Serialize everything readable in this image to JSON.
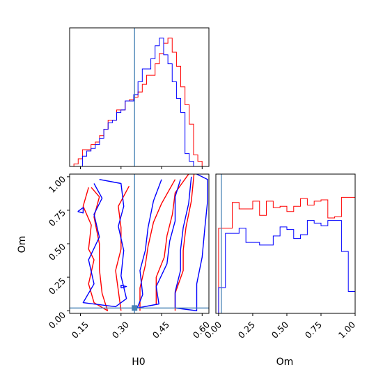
{
  "chart_data": {
    "type": "corner",
    "parameters": [
      "H0",
      "Om"
    ],
    "truth": {
      "H0": 0.35,
      "Om": 0.02
    },
    "truth_color": "#4682b4",
    "series": [
      {
        "color": "#ff0000"
      },
      {
        "color": "#0000ff"
      }
    ],
    "panels": [
      {
        "id": "hist-H0",
        "kind": "histogram",
        "param": "H0",
        "xlim": [
          0.11,
          0.625
        ],
        "ylim": [
          0,
          1.08
        ],
        "xticks": [
          0.15,
          0.3,
          0.45,
          0.6
        ],
        "bin_edges": [
          0.11,
          0.1258,
          0.1416,
          0.1574,
          0.1732,
          0.189,
          0.2048,
          0.2206,
          0.2364,
          0.2522,
          0.268,
          0.2838,
          0.2996,
          0.3154,
          0.3312,
          0.347,
          0.3628,
          0.3786,
          0.3944,
          0.4102,
          0.426,
          0.4418,
          0.4576,
          0.4734,
          0.4892,
          0.505,
          0.5208,
          0.5366,
          0.5524,
          0.5682,
          0.584,
          0.5998,
          0.6156
        ],
        "series_values": [
          [
            0.0,
            0.02,
            0.06,
            0.13,
            0.13,
            0.17,
            0.19,
            0.24,
            0.29,
            0.36,
            0.36,
            0.44,
            0.44,
            0.51,
            0.52,
            0.54,
            0.58,
            0.64,
            0.71,
            0.71,
            0.8,
            0.88,
            0.96,
            1.0,
            0.89,
            0.78,
            0.62,
            0.48,
            0.33,
            0.09,
            0.04,
            0.0
          ],
          [
            0.0,
            0.0,
            0.0,
            0.08,
            0.12,
            0.14,
            0.17,
            0.22,
            0.29,
            0.34,
            0.36,
            0.42,
            0.44,
            0.51,
            0.51,
            0.56,
            0.66,
            0.76,
            0.76,
            0.84,
            0.94,
            1.0,
            0.87,
            0.8,
            0.66,
            0.53,
            0.42,
            0.1,
            0.04,
            0.0,
            0.0,
            0.0
          ]
        ]
      },
      {
        "id": "hist-Om",
        "kind": "histogram",
        "param": "Om",
        "xlim": [
          -0.02,
          1.0
        ],
        "ylim": [
          0,
          1.08
        ],
        "xticks": [
          0.0,
          0.25,
          0.5,
          0.75,
          1.0
        ],
        "xticklabels": [
          "0.00",
          "0.25",
          "0.50",
          "0.75",
          "1.00"
        ],
        "bin_edges": [
          0.0,
          0.05,
          0.1,
          0.15,
          0.2,
          0.25,
          0.3,
          0.35,
          0.4,
          0.45,
          0.5,
          0.55,
          0.6,
          0.65,
          0.7,
          0.75,
          0.8,
          0.85,
          0.9,
          0.95,
          1.0
        ],
        "series_values": [
          [
            0.66,
            0.66,
            0.86,
            0.81,
            0.81,
            0.87,
            0.76,
            0.87,
            0.82,
            0.83,
            0.79,
            0.83,
            0.89,
            0.84,
            0.87,
            0.88,
            0.74,
            0.75,
            0.9,
            0.9
          ],
          [
            0.2,
            0.62,
            0.62,
            0.66,
            0.55,
            0.55,
            0.53,
            0.53,
            0.6,
            0.67,
            0.65,
            0.58,
            0.61,
            0.72,
            0.7,
            0.68,
            0.72,
            0.72,
            0.48,
            0.17
          ]
        ]
      },
      {
        "id": "scatter-H0-Om",
        "kind": "contour",
        "xparam": "H0",
        "yparam": "Om",
        "xlim": [
          0.11,
          0.625
        ],
        "ylim": [
          -0.02,
          1.02
        ],
        "xticks": [
          0.15,
          0.3,
          0.45,
          0.6
        ],
        "yticks": [
          0.0,
          0.25,
          0.5,
          0.75,
          1.0
        ],
        "contours": [
          {
            "series": 0,
            "points": [
              [
                0.18,
                0.92
              ],
              [
                0.16,
                0.78
              ],
              [
                0.19,
                0.64
              ],
              [
                0.18,
                0.46
              ],
              [
                0.2,
                0.38
              ],
              [
                0.18,
                0.2
              ],
              [
                0.2,
                0.06
              ],
              [
                0.25,
                0.0
              ],
              [
                0.23,
                0.13
              ],
              [
                0.22,
                0.31
              ],
              [
                0.22,
                0.5
              ],
              [
                0.2,
                0.7
              ],
              [
                0.22,
                0.85
              ],
              [
                0.19,
                0.92
              ]
            ]
          },
          {
            "series": 0,
            "points": [
              [
                0.33,
                0.93
              ],
              [
                0.29,
                0.78
              ],
              [
                0.3,
                0.62
              ],
              [
                0.3,
                0.46
              ],
              [
                0.28,
                0.3
              ],
              [
                0.29,
                0.15
              ],
              [
                0.3,
                0.0
              ]
            ]
          },
          {
            "series": 0,
            "points": [
              [
                0.5,
                0.98
              ],
              [
                0.45,
                0.8
              ],
              [
                0.42,
                0.66
              ],
              [
                0.4,
                0.48
              ],
              [
                0.39,
                0.34
              ],
              [
                0.37,
                0.17
              ],
              [
                0.37,
                0.0
              ]
            ]
          },
          {
            "series": 0,
            "points": [
              [
                0.55,
                1.02
              ],
              [
                0.5,
                0.88
              ],
              [
                0.49,
                0.72
              ],
              [
                0.47,
                0.56
              ],
              [
                0.46,
                0.4
              ],
              [
                0.43,
                0.25
              ],
              [
                0.43,
                0.05
              ]
            ]
          },
          {
            "series": 0,
            "points": [
              [
                0.57,
                1.02
              ],
              [
                0.56,
                0.82
              ],
              [
                0.54,
                0.62
              ],
              [
                0.53,
                0.45
              ],
              [
                0.53,
                0.3
              ],
              [
                0.5,
                0.13
              ],
              [
                0.5,
                0.0
              ]
            ]
          },
          {
            "series": 1,
            "points": [
              [
                0.2,
                0.95
              ],
              [
                0.23,
                0.84
              ],
              [
                0.2,
                0.72
              ],
              [
                0.22,
                0.55
              ],
              [
                0.18,
                0.38
              ],
              [
                0.2,
                0.2
              ],
              [
                0.16,
                0.06
              ],
              [
                0.28,
                0.03
              ],
              [
                0.32,
                0.09
              ],
              [
                0.3,
                0.26
              ],
              [
                0.31,
                0.45
              ],
              [
                0.29,
                0.63
              ],
              [
                0.31,
                0.78
              ],
              [
                0.3,
                0.95
              ],
              [
                0.22,
                0.98
              ]
            ]
          },
          {
            "series": 1,
            "points": [
              [
                0.45,
                0.98
              ],
              [
                0.42,
                0.82
              ],
              [
                0.4,
                0.62
              ],
              [
                0.39,
                0.45
              ],
              [
                0.37,
                0.3
              ],
              [
                0.38,
                0.12
              ],
              [
                0.36,
                0.02
              ],
              [
                0.44,
                0.05
              ],
              [
                0.43,
                0.18
              ],
              [
                0.47,
                0.35
              ],
              [
                0.48,
                0.52
              ],
              [
                0.5,
                0.67
              ],
              [
                0.5,
                0.85
              ],
              [
                0.52,
                0.98
              ]
            ]
          },
          {
            "series": 1,
            "points": [
              [
                0.56,
                1.0
              ],
              [
                0.55,
                0.8
              ],
              [
                0.53,
                0.62
              ],
              [
                0.52,
                0.45
              ],
              [
                0.52,
                0.3
              ],
              [
                0.5,
                0.14
              ],
              [
                0.5,
                0.02
              ],
              [
                0.58,
                0.0
              ],
              [
                0.58,
                0.2
              ],
              [
                0.6,
                0.4
              ],
              [
                0.61,
                0.62
              ],
              [
                0.62,
                0.82
              ],
              [
                0.62,
                0.98
              ],
              [
                0.58,
                1.02
              ]
            ]
          },
          {
            "series": 1,
            "points": [
              [
                0.14,
                0.74
              ],
              [
                0.16,
                0.77
              ],
              [
                0.16,
                0.73
              ],
              [
                0.14,
                0.74
              ]
            ]
          },
          {
            "series": 1,
            "points": [
              [
                0.3,
                0.17
              ],
              [
                0.32,
                0.18
              ],
              [
                0.3,
                0.19
              ],
              [
                0.3,
                0.17
              ]
            ]
          }
        ]
      }
    ]
  },
  "labels": {
    "x_H0": "H0",
    "x_Om": "Om",
    "y_Om": "Om"
  },
  "tick_labels": {
    "h0_bottom": [
      "0.15",
      "0.30",
      "0.45",
      "0.60"
    ],
    "om_left": [
      "0.00",
      "0.25",
      "0.50",
      "0.75",
      "1.00"
    ],
    "om_bottom": [
      "0.00",
      "0.25",
      "0.50",
      "0.75",
      "1.00"
    ]
  }
}
